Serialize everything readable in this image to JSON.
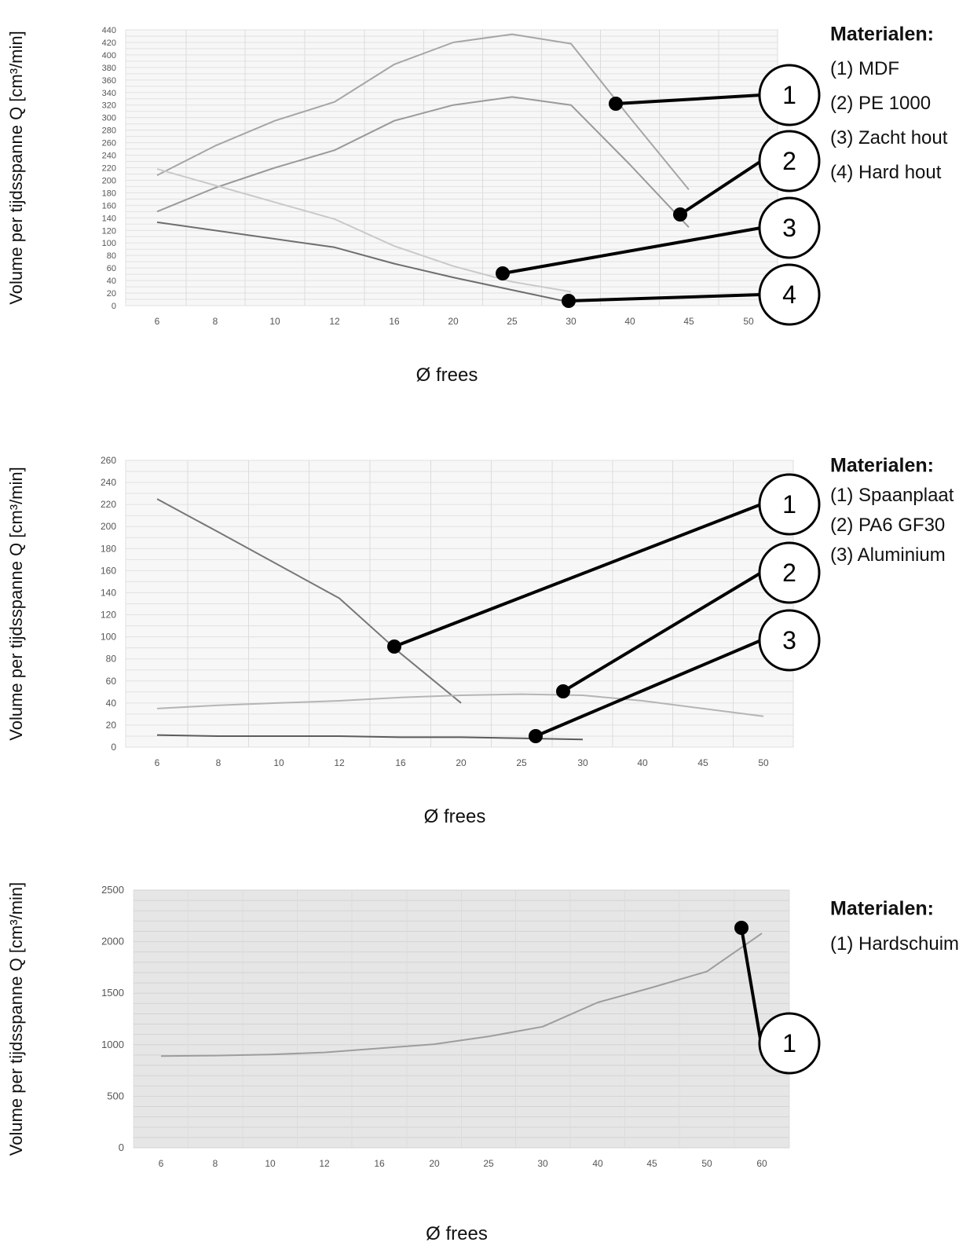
{
  "chart_data": [
    {
      "type": "line",
      "ylabel": "Volume per tijdsspanne Q [cm³/min]",
      "xlabel": "Ø frees",
      "categories": [
        "6",
        "8",
        "10",
        "12",
        "16",
        "20",
        "25",
        "30",
        "40",
        "45",
        "50"
      ],
      "yticks": [
        "0",
        "20",
        "40",
        "60",
        "80",
        "100",
        "120",
        "140",
        "160",
        "180",
        "200",
        "220",
        "240",
        "260",
        "280",
        "300",
        "320",
        "340",
        "360",
        "380",
        "400",
        "420",
        "440"
      ],
      "ylim": [
        0,
        440
      ],
      "grid": true,
      "legend_title": "Materialen:",
      "legend": [
        "(1) MDF",
        "(2) PE 1000",
        "(3) Zacht hout",
        "(4) Hard hout"
      ],
      "callouts": [
        "1",
        "2",
        "3",
        "4"
      ],
      "series": [
        {
          "x": [
            "6",
            "8",
            "10",
            "12",
            "16",
            "20",
            "25",
            "30",
            "40",
            "45"
          ],
          "values": [
            208,
            255,
            295,
            325,
            385,
            420,
            433,
            418,
            300,
            185
          ],
          "color": "#a6a6a6"
        },
        {
          "x": [
            "6",
            "8",
            "10",
            "12",
            "16",
            "20",
            "25",
            "30",
            "40",
            "45"
          ],
          "values": [
            150,
            188,
            220,
            248,
            295,
            320,
            333,
            320,
            225,
            125
          ],
          "color": "#9a9a9a"
        },
        {
          "x": [
            "6",
            "12",
            "16",
            "20",
            "25",
            "30"
          ],
          "values": [
            218,
            138,
            95,
            63,
            38,
            22
          ],
          "color": "#c9c9c9"
        },
        {
          "x": [
            "6",
            "12",
            "16",
            "20",
            "25",
            "30"
          ],
          "values": [
            133,
            93,
            67,
            45,
            25,
            5
          ],
          "color": "#6e6e6e"
        }
      ]
    },
    {
      "type": "line",
      "ylabel": "Volume per tijdsspanne Q [cm³/min]",
      "xlabel": "Ø frees",
      "categories": [
        "6",
        "8",
        "10",
        "12",
        "16",
        "20",
        "25",
        "30",
        "40",
        "45",
        "50"
      ],
      "yticks": [
        "0",
        "20",
        "40",
        "60",
        "80",
        "100",
        "120",
        "140",
        "160",
        "180",
        "200",
        "220",
        "240",
        "260"
      ],
      "ylim": [
        0,
        260
      ],
      "grid": true,
      "legend_title": "Materialen:",
      "legend": [
        "(1) Spaanplaat",
        "(2) PA6 GF30",
        "(3) Aluminium"
      ],
      "callouts": [
        "1",
        "2",
        "3"
      ],
      "series": [
        {
          "x": [
            "6",
            "8",
            "10",
            "12",
            "16",
            "20"
          ],
          "values": [
            225,
            195,
            165,
            135,
            85,
            40
          ],
          "color": "#777777"
        },
        {
          "x": [
            "6",
            "8",
            "10",
            "12",
            "16",
            "20",
            "25",
            "30",
            "40",
            "45",
            "50"
          ],
          "values": [
            35,
            38,
            40,
            42,
            45,
            47,
            48,
            47,
            42,
            35,
            28
          ],
          "color": "#b5b5b5"
        },
        {
          "x": [
            "6",
            "8",
            "10",
            "12",
            "16",
            "20",
            "25",
            "30"
          ],
          "values": [
            11,
            10,
            10,
            10,
            9,
            9,
            8,
            7
          ],
          "color": "#5c5c5c"
        }
      ]
    },
    {
      "type": "line",
      "ylabel": "Volume per tijdsspanne Q [cm³/min]",
      "xlabel": "Ø frees",
      "categories": [
        "6",
        "8",
        "10",
        "12",
        "16",
        "20",
        "25",
        "30",
        "40",
        "45",
        "50",
        "60"
      ],
      "yticks": [
        "0",
        "500",
        "1000",
        "1500",
        "2000",
        "2500"
      ],
      "ylim": [
        0,
        2500
      ],
      "grid": true,
      "legend_title": "Materialen:",
      "legend": [
        "(1) Hardschuim"
      ],
      "callouts": [
        "1"
      ],
      "series": [
        {
          "x": [
            "6",
            "8",
            "10",
            "12",
            "16",
            "20",
            "25",
            "30",
            "40",
            "45",
            "50",
            "60"
          ],
          "values": [
            890,
            895,
            905,
            925,
            965,
            1005,
            1080,
            1175,
            1410,
            1555,
            1710,
            2080
          ],
          "color": "#9d9d9d"
        }
      ]
    }
  ]
}
